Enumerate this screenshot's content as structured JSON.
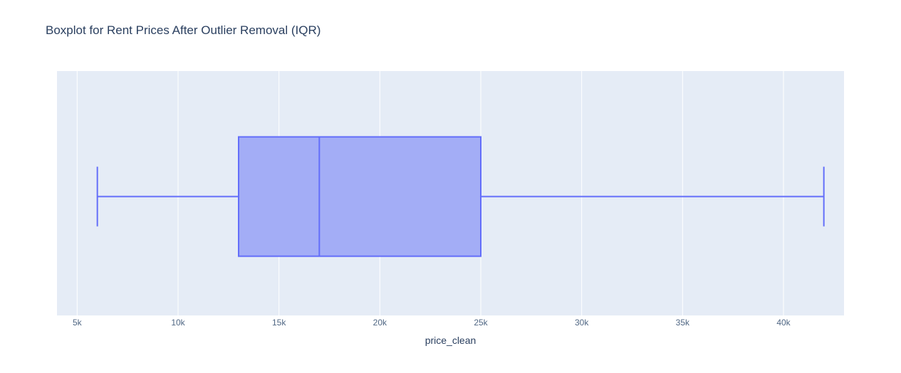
{
  "chart_data": {
    "type": "box",
    "title": "Boxplot for Rent Prices After Outlier Removal (IQR)",
    "xlabel": "price_clean",
    "ylabel": "",
    "orientation": "horizontal",
    "xlim": [
      4000,
      43000
    ],
    "xticks": [
      5000,
      10000,
      15000,
      20000,
      25000,
      30000,
      35000,
      40000
    ],
    "xtick_labels": [
      "5k",
      "10k",
      "15k",
      "20k",
      "25k",
      "30k",
      "35k",
      "40k"
    ],
    "grid": true,
    "series": [
      {
        "min": 6000,
        "q1": 13000,
        "median": 17000,
        "q3": 25000,
        "max": 42000
      }
    ],
    "colors": {
      "plot_background": "#e5ecf6",
      "grid": "#ffffff",
      "box_fill": "#a3adf6",
      "box_line": "#636efa",
      "text": "#2a3f5f",
      "tick_text": "#506784"
    }
  }
}
